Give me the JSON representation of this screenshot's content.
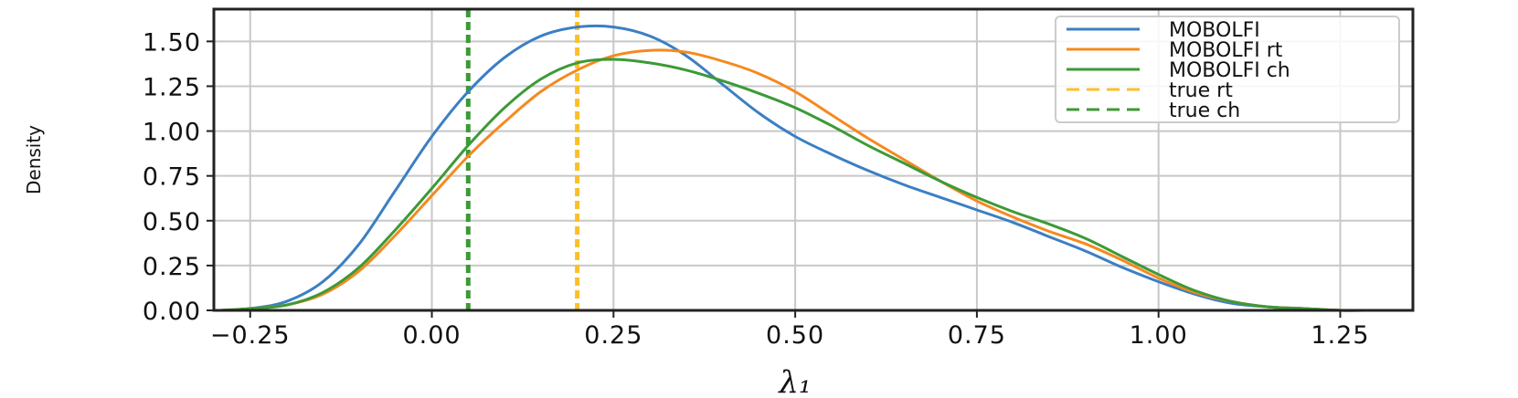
{
  "chart_data": {
    "type": "line",
    "title": "",
    "xlabel": "λ₁",
    "ylabel": "Density",
    "xlim": [
      -0.3,
      1.35
    ],
    "ylim": [
      0.0,
      1.68
    ],
    "xticks": [
      -0.25,
      0.0,
      0.25,
      0.5,
      0.75,
      1.0,
      1.25
    ],
    "xtick_labels": [
      "−0.25",
      "0.00",
      "0.25",
      "0.50",
      "0.75",
      "1.00",
      "1.25"
    ],
    "yticks": [
      0.0,
      0.25,
      0.5,
      0.75,
      1.0,
      1.25,
      1.5
    ],
    "ytick_labels": [
      "0.00",
      "0.25",
      "0.50",
      "0.75",
      "1.00",
      "1.25",
      "1.50"
    ],
    "grid": true,
    "legend_position": "top-right",
    "series": [
      {
        "name": "MOBOLFI",
        "color": "#3b7fc4",
        "style": "solid",
        "x": [
          -0.29,
          -0.25,
          -0.2,
          -0.15,
          -0.1,
          -0.05,
          0.0,
          0.05,
          0.1,
          0.15,
          0.2,
          0.25,
          0.3,
          0.35,
          0.4,
          0.45,
          0.5,
          0.55,
          0.6,
          0.65,
          0.7,
          0.75,
          0.8,
          0.85,
          0.9,
          0.95,
          1.0,
          1.05,
          1.1,
          1.15,
          1.2,
          1.25,
          1.29
        ],
        "y": [
          0.0,
          0.01,
          0.05,
          0.16,
          0.37,
          0.67,
          0.97,
          1.22,
          1.41,
          1.53,
          1.58,
          1.58,
          1.53,
          1.42,
          1.26,
          1.1,
          0.97,
          0.87,
          0.78,
          0.7,
          0.63,
          0.56,
          0.49,
          0.41,
          0.33,
          0.24,
          0.16,
          0.09,
          0.04,
          0.02,
          0.01,
          0.0,
          0.0
        ]
      },
      {
        "name": "MOBOLFI rt",
        "color": "#f5891f",
        "style": "solid",
        "x": [
          -0.29,
          -0.25,
          -0.2,
          -0.15,
          -0.1,
          -0.05,
          0.0,
          0.05,
          0.1,
          0.15,
          0.2,
          0.25,
          0.3,
          0.35,
          0.4,
          0.45,
          0.5,
          0.55,
          0.6,
          0.65,
          0.7,
          0.75,
          0.8,
          0.85,
          0.9,
          0.95,
          1.0,
          1.05,
          1.1,
          1.15,
          1.2,
          1.25,
          1.29
        ],
        "y": [
          0.0,
          0.01,
          0.03,
          0.09,
          0.22,
          0.42,
          0.64,
          0.86,
          1.05,
          1.22,
          1.34,
          1.42,
          1.45,
          1.44,
          1.39,
          1.32,
          1.22,
          1.09,
          0.96,
          0.84,
          0.72,
          0.61,
          0.52,
          0.44,
          0.37,
          0.28,
          0.18,
          0.1,
          0.05,
          0.02,
          0.01,
          0.0,
          0.0
        ]
      },
      {
        "name": "MOBOLFI ch",
        "color": "#3c9a36",
        "style": "solid",
        "x": [
          -0.29,
          -0.25,
          -0.2,
          -0.15,
          -0.1,
          -0.05,
          0.0,
          0.05,
          0.1,
          0.15,
          0.2,
          0.25,
          0.3,
          0.35,
          0.4,
          0.45,
          0.5,
          0.55,
          0.6,
          0.65,
          0.7,
          0.75,
          0.8,
          0.85,
          0.9,
          0.95,
          1.0,
          1.05,
          1.1,
          1.15,
          1.2,
          1.25,
          1.29
        ],
        "y": [
          0.0,
          0.01,
          0.03,
          0.1,
          0.24,
          0.45,
          0.68,
          0.92,
          1.13,
          1.29,
          1.38,
          1.4,
          1.38,
          1.34,
          1.28,
          1.21,
          1.13,
          1.03,
          0.92,
          0.82,
          0.72,
          0.63,
          0.55,
          0.48,
          0.4,
          0.3,
          0.2,
          0.11,
          0.05,
          0.02,
          0.01,
          0.0,
          0.0
        ]
      },
      {
        "name": "true rt",
        "color": "#fbbf2a",
        "style": "dashed-vertical",
        "x_value": 0.2
      },
      {
        "name": "true ch",
        "color": "#3c9a36",
        "style": "dashed-vertical",
        "x_value": 0.05
      }
    ]
  }
}
